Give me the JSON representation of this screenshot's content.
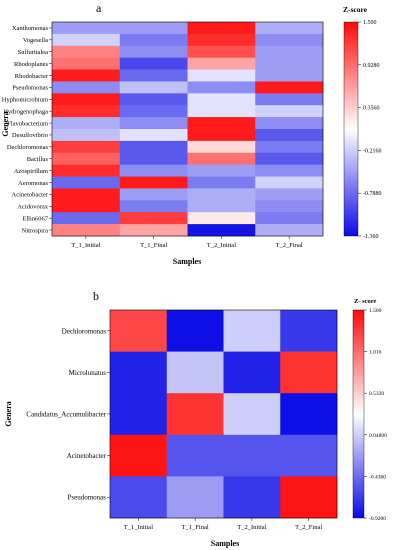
{
  "colors": {
    "low": "#0a0ae6",
    "mid": "#ffffff",
    "high": "#ff0a0a"
  },
  "chart_data": [
    {
      "type": "heatmap",
      "panel_label": "a",
      "xlabel": "Samples",
      "ylabel": "Genera",
      "colorbar_title": "Z-score",
      "colorbar_ticks": [
        "1.500",
        "0.9280",
        "0.3560",
        "-0.2160",
        "-0.7880",
        "-1.360"
      ],
      "zlim": [
        -1.36,
        1.5
      ],
      "columns": [
        "T_1_Initial",
        "T_1_Final",
        "T_2_Initial",
        "T_2_Final"
      ],
      "rows": [
        "Xanthomonas",
        "Vogesella",
        "Sulfuritalea",
        "Rhodoplanes",
        "Rhodobacter",
        "Pseudomonas",
        "Hyphomicrobium",
        "Hydrogenophaga",
        "Flavobacterium",
        "Desulfovibrio",
        "Dechloromonas",
        "Bacillus",
        "Azospirillum",
        "Aeromonas",
        "Acinetobacter",
        "Acidovorax",
        "Ellin6067",
        "Nitrospira"
      ],
      "values": [
        [
          -0.5,
          -0.5,
          1.4,
          -0.4
        ],
        [
          -0.2,
          -0.7,
          1.3,
          -0.6
        ],
        [
          0.8,
          -0.6,
          1.1,
          -0.5
        ],
        [
          0.9,
          -1.0,
          0.6,
          -0.5
        ],
        [
          1.4,
          -0.8,
          -0.1,
          -0.5
        ],
        [
          -0.6,
          -0.3,
          -0.6,
          1.4
        ],
        [
          1.4,
          -0.9,
          -0.1,
          -0.7
        ],
        [
          1.3,
          -0.8,
          -0.1,
          -0.2
        ],
        [
          -0.4,
          -0.6,
          1.4,
          -0.6
        ],
        [
          -0.3,
          -0.1,
          1.4,
          -0.9
        ],
        [
          1.2,
          -0.9,
          0.3,
          -0.7
        ],
        [
          1.0,
          -0.9,
          0.9,
          -0.9
        ],
        [
          1.3,
          -0.6,
          -0.5,
          -0.6
        ],
        [
          -0.8,
          1.4,
          -0.7,
          -0.2
        ],
        [
          1.4,
          -0.5,
          -0.4,
          -0.5
        ],
        [
          1.4,
          -0.7,
          -0.4,
          -0.6
        ],
        [
          -0.8,
          1.2,
          0.2,
          -0.7
        ],
        [
          0.8,
          0.6,
          -1.3,
          -0.4
        ]
      ]
    },
    {
      "type": "heatmap",
      "panel_label": "b",
      "xlabel": "Samples",
      "ylabel": "Genera",
      "colorbar_title": "Z- score",
      "colorbar_ticks": [
        "1.500",
        "1.016",
        "0.5320",
        "0.04800",
        "-0.4360",
        "-0.9200"
      ],
      "zlim": [
        -0.92,
        1.5
      ],
      "columns": [
        "T_1_Initial",
        "T_1_Final",
        "T_2_Initial",
        "T_2_Final"
      ],
      "rows": [
        "Dechloromonas",
        "Microlunatus",
        "Candidatus_Accumulibacter",
        "Acinetobacter",
        "Pseudomonas"
      ],
      "values": [
        [
          1.2,
          -0.9,
          0.05,
          -0.7
        ],
        [
          -0.8,
          0.0,
          -0.8,
          1.3
        ],
        [
          -0.8,
          1.3,
          0.05,
          -0.9
        ],
        [
          1.45,
          -0.55,
          -0.55,
          -0.55
        ],
        [
          -0.6,
          -0.2,
          -0.7,
          1.45
        ]
      ]
    }
  ]
}
